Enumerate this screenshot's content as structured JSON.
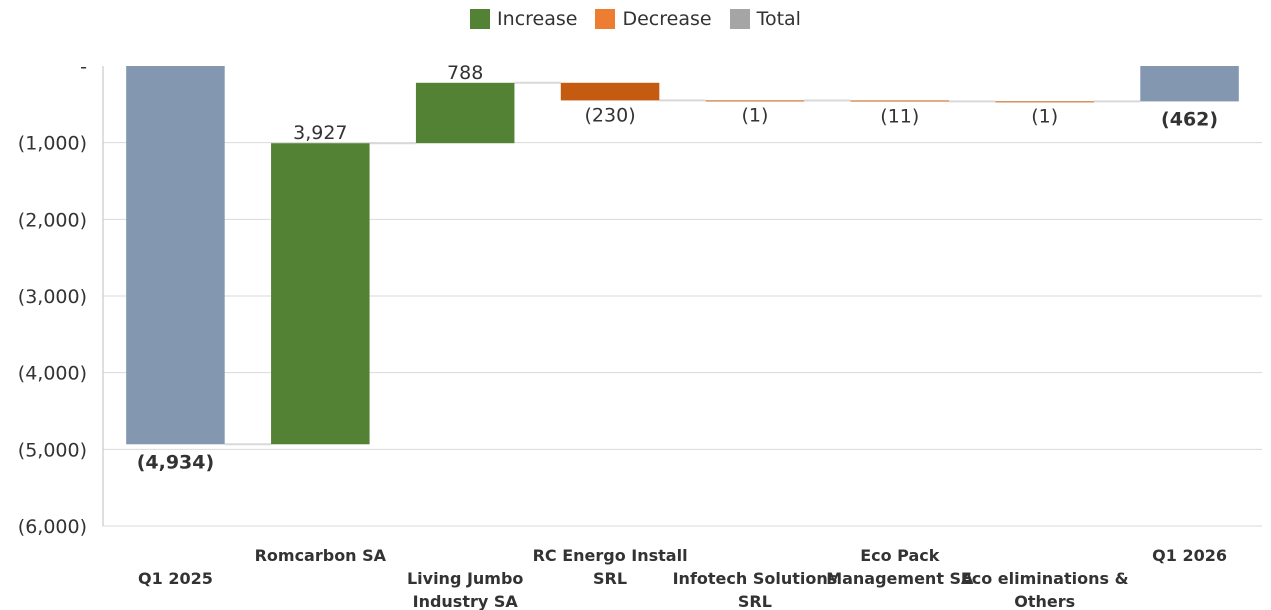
{
  "legend": [
    {
      "label": "Increase",
      "color": "#548235"
    },
    {
      "label": "Decrease",
      "color": "#ED7D31"
    },
    {
      "label": "Total",
      "color": "#A5A5A5"
    }
  ],
  "chart_data": {
    "type": "waterfall",
    "legend_position": "top-center",
    "ylim": [
      -6000,
      0
    ],
    "yticks": [
      0,
      -1000,
      -2000,
      -3000,
      -4000,
      -5000,
      -6000
    ],
    "ytick_labels": [
      "-",
      "(1,000)",
      "(2,000)",
      "(3,000)",
      "(4,000)",
      "(5,000)",
      "(6,000)"
    ],
    "grid": true,
    "categories": [
      [
        "Q1 2025"
      ],
      [
        "Romcarbon SA"
      ],
      [
        "Living Jumbo",
        "Industry SA"
      ],
      [
        "RC Energo Install",
        "SRL"
      ],
      [
        "Infotech Solutions",
        "SRL"
      ],
      [
        "Eco Pack",
        "Management SA"
      ],
      [
        "Eco eliminations &",
        "Others"
      ],
      [
        "Q1 2026"
      ]
    ],
    "steps": [
      {
        "kind": "total",
        "value": -4934,
        "label": "(4,934)",
        "bold": true
      },
      {
        "kind": "increase",
        "value": 3927,
        "label": "3,927",
        "bold": false
      },
      {
        "kind": "increase",
        "value": 788,
        "label": "788",
        "bold": false
      },
      {
        "kind": "decrease",
        "value": -230,
        "label": "(230)",
        "bold": false
      },
      {
        "kind": "decrease",
        "value": -1,
        "label": "(1)",
        "bold": false
      },
      {
        "kind": "decrease",
        "value": -11,
        "label": "(11)",
        "bold": false
      },
      {
        "kind": "decrease",
        "value": -1,
        "label": "(1)",
        "bold": false
      },
      {
        "kind": "total",
        "value": -462,
        "label": "(462)",
        "bold": true
      }
    ],
    "colors": {
      "increase": "#548235",
      "decrease": "#C55A11",
      "total": "#8497B0",
      "connector": "#D9D9D9",
      "grid": "#D9D9D9",
      "axis": "#BFBFBF"
    }
  }
}
